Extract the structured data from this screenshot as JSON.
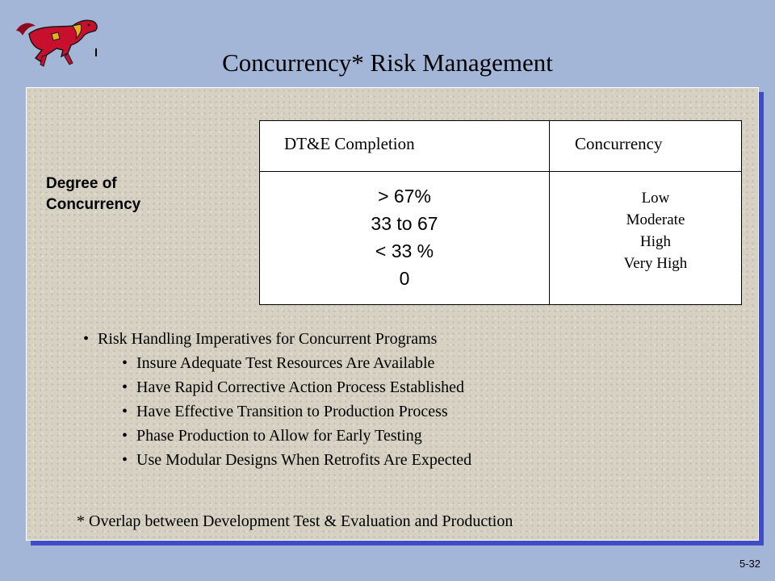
{
  "slide": {
    "title": "Concurrency* Risk Management",
    "page_number": "5-32",
    "logo_icon": "mustang-horse-logo"
  },
  "degree_label": {
    "line1": "Degree of",
    "line2": "Concurrency"
  },
  "table": {
    "headers": [
      "DT&E Completion",
      "Concurrency"
    ],
    "completion_values": [
      "> 67%",
      "33 to 67",
      "< 33 %",
      "0"
    ],
    "concurrency_levels": [
      "Low",
      "Moderate",
      "High",
      "Very High"
    ]
  },
  "bullets": {
    "main": "Risk Handling Imperatives for Concurrent Programs",
    "sub": [
      "Insure Adequate Test Resources Are Available",
      "Have Rapid Corrective Action Process Established",
      "Have Effective Transition to Production Process",
      "Phase Production to Allow for Early Testing",
      "Use Modular Designs When Retrofits Are Expected"
    ]
  },
  "footnote": "*  Overlap between Development Test & Evaluation and Production",
  "colors": {
    "background": "#a4b6d8",
    "panel": "#d7d1c3",
    "panel_shadow": "#3f4cc4",
    "logo_red": "#c8102e",
    "logo_gold": "#e8b020"
  }
}
